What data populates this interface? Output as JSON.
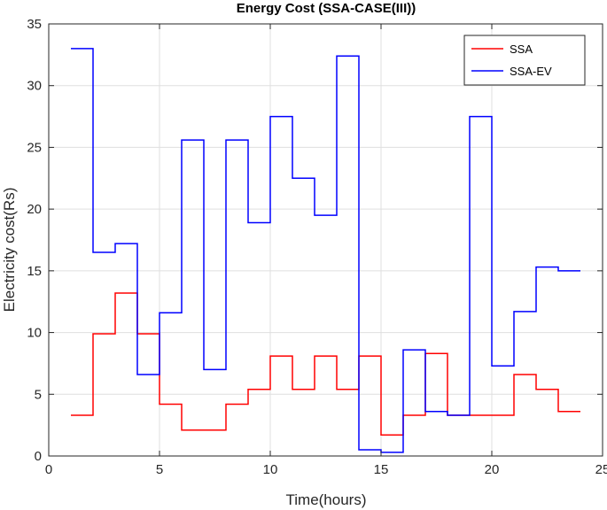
{
  "chart_data": {
    "type": "line",
    "step": "post",
    "title": "Energy Cost (SSA-CASE(III))",
    "xlabel": "Time(hours)",
    "ylabel": "Electricity cost(Rs)",
    "xlim": [
      0,
      25
    ],
    "ylim": [
      0,
      35
    ],
    "xticks": [
      0,
      5,
      10,
      15,
      20,
      25
    ],
    "yticks": [
      0,
      5,
      10,
      15,
      20,
      25,
      30,
      35
    ],
    "grid": true,
    "legend_location": "top-right",
    "x": [
      1,
      2,
      3,
      4,
      5,
      6,
      7,
      8,
      9,
      10,
      11,
      12,
      13,
      14,
      15,
      16,
      17,
      18,
      19,
      20,
      21,
      22,
      23,
      24
    ],
    "series": [
      {
        "name": "SSA",
        "color": "#ff0000",
        "values": [
          3.3,
          9.9,
          13.2,
          9.9,
          4.2,
          2.1,
          2.1,
          4.2,
          5.4,
          8.1,
          5.4,
          8.1,
          5.4,
          8.1,
          1.7,
          3.3,
          8.3,
          3.3,
          3.3,
          3.3,
          6.6,
          5.4,
          3.6,
          3.6
        ]
      },
      {
        "name": "SSA-EV",
        "color": "#0000ff",
        "values": [
          33.0,
          16.5,
          17.2,
          6.6,
          11.6,
          25.6,
          7.0,
          25.6,
          18.9,
          27.5,
          22.5,
          19.5,
          32.4,
          0.5,
          0.3,
          8.6,
          3.6,
          3.3,
          27.5,
          7.3,
          11.7,
          15.3,
          15.0,
          15.0
        ]
      }
    ]
  }
}
